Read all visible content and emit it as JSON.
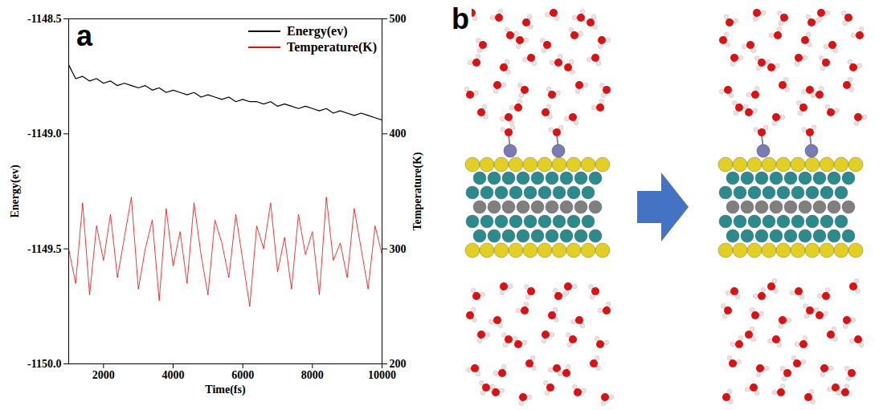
{
  "chart_data": {
    "type": "line",
    "panel": "a",
    "xlabel": "Time(fs)",
    "ylabel": "Energy(ev)",
    "y2label": "Temperature(K)",
    "x": [
      1000,
      1200,
      1400,
      1600,
      1800,
      2000,
      2200,
      2400,
      2600,
      2800,
      3000,
      3200,
      3400,
      3600,
      3800,
      4000,
      4200,
      4400,
      4600,
      4800,
      5000,
      5200,
      5400,
      5600,
      5800,
      6000,
      6200,
      6400,
      6600,
      6800,
      7000,
      7200,
      7400,
      7600,
      7800,
      8000,
      8200,
      8400,
      8600,
      8800,
      9000,
      9200,
      9400,
      9600,
      9800,
      10000
    ],
    "series": [
      {
        "name": "Energy(ev)",
        "color": "#000000",
        "values": [
          -1148.7,
          -1148.76,
          -1148.75,
          -1148.77,
          -1148.76,
          -1148.78,
          -1148.77,
          -1148.79,
          -1148.78,
          -1148.79,
          -1148.8,
          -1148.79,
          -1148.81,
          -1148.8,
          -1148.82,
          -1148.81,
          -1148.82,
          -1148.83,
          -1148.82,
          -1148.84,
          -1148.83,
          -1148.84,
          -1148.85,
          -1148.84,
          -1148.86,
          -1148.85,
          -1148.86,
          -1148.86,
          -1148.87,
          -1148.86,
          -1148.88,
          -1148.87,
          -1148.88,
          -1148.89,
          -1148.88,
          -1148.89,
          -1148.9,
          -1148.89,
          -1148.91,
          -1148.9,
          -1148.91,
          -1148.92,
          -1148.91,
          -1148.92,
          -1148.93,
          -1148.94
        ]
      },
      {
        "name": "Temperature(K)",
        "color": "#ff0000",
        "axis": "y2",
        "values": [
          300,
          270,
          340,
          260,
          320,
          290,
          330,
          275,
          310,
          345,
          265,
          300,
          325,
          255,
          335,
          285,
          315,
          270,
          340,
          295,
          260,
          325,
          305,
          275,
          330,
          290,
          250,
          320,
          300,
          340,
          280,
          310,
          265,
          330,
          295,
          315,
          260,
          345,
          290,
          305,
          275,
          335,
          300,
          265,
          320,
          295
        ]
      }
    ],
    "xlim": [
      1000,
      10000
    ],
    "xticks": [
      2000,
      4000,
      6000,
      8000,
      10000
    ],
    "ylim": [
      -1150,
      -1148.5
    ],
    "yticks": [
      {
        "value": -1150,
        "label": "-1150.0"
      },
      -1149.5,
      {
        "value": -1149,
        "label": "-1149.0"
      },
      -1148.5
    ],
    "y2lim": [
      200,
      500
    ],
    "y2ticks": [
      200,
      300,
      400,
      500
    ],
    "legend": "top-right"
  },
  "diagram": {
    "panel": "b"
  }
}
